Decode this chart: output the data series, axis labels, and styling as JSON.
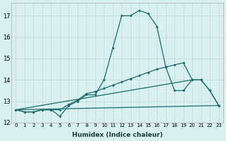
{
  "bg_color": "#d8f0f0",
  "grid_color": "#c8dede",
  "line_color": "#1a6b6b",
  "xlabel": "Humidex (Indice chaleur)",
  "ylim": [
    12,
    17.6
  ],
  "xlim": [
    -0.5,
    23.5
  ],
  "yticks": [
    12,
    13,
    14,
    15,
    16,
    17
  ],
  "xticks": [
    0,
    1,
    2,
    3,
    4,
    5,
    6,
    7,
    8,
    9,
    10,
    11,
    12,
    13,
    14,
    15,
    16,
    17,
    18,
    19,
    20,
    21,
    22,
    23
  ],
  "line1_x": [
    0,
    1,
    2,
    3,
    4,
    5,
    6,
    7,
    8,
    9,
    10,
    11,
    12,
    13,
    14,
    15,
    16,
    17,
    18,
    19,
    20,
    21,
    22,
    23
  ],
  "line1_y": [
    12.6,
    12.5,
    12.5,
    12.6,
    12.6,
    12.3,
    12.8,
    13.0,
    13.3,
    13.3,
    14.0,
    15.5,
    17.0,
    17.0,
    17.25,
    17.1,
    16.5,
    14.6,
    13.5,
    13.5,
    14.0,
    14.0,
    13.5,
    12.8
  ],
  "line2_x": [
    0,
    20
  ],
  "line2_y": [
    12.6,
    14.0
  ],
  "line3_x": [
    0,
    23
  ],
  "line3_y": [
    12.6,
    12.8
  ],
  "line4_x": [
    0,
    1,
    2,
    3,
    4,
    5,
    6,
    7,
    8,
    9,
    10,
    11,
    12,
    13,
    14,
    15,
    16,
    17,
    18,
    19,
    20,
    21,
    22,
    23
  ],
  "line4_y": [
    12.6,
    12.5,
    12.5,
    12.6,
    12.6,
    12.6,
    12.85,
    13.05,
    13.35,
    13.45,
    13.6,
    13.75,
    13.9,
    14.05,
    14.2,
    14.35,
    14.5,
    14.6,
    14.7,
    14.8,
    14.0,
    14.0,
    13.5,
    12.8
  ]
}
